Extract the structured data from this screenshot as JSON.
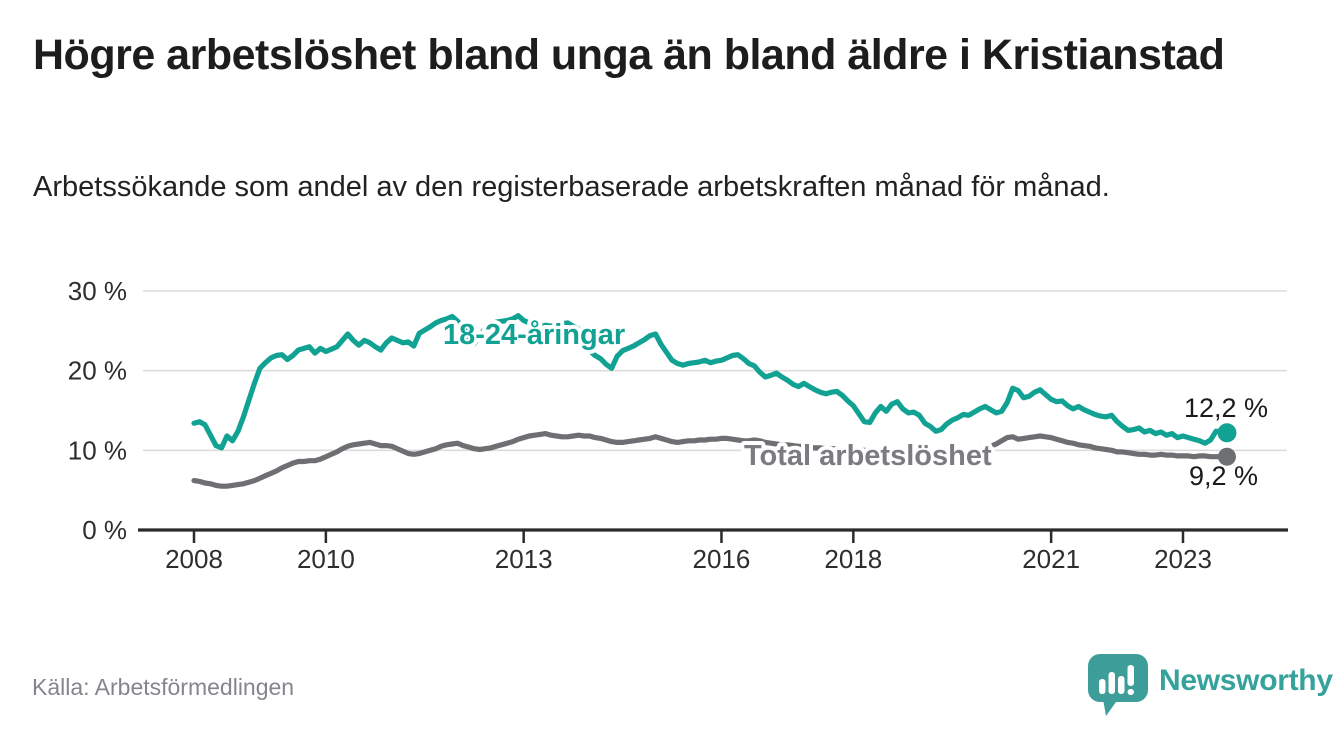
{
  "header": {
    "title": "Högre arbetslöshet bland unga än bland äldre i Kristianstad",
    "subtitle": "Arbetssökande som andel av den registerbaserade arbetskraften månad för månad."
  },
  "footer": {
    "source": "Källa: Arbetsförmedlingen",
    "brand": "Newsworthy",
    "brand_color": "#35a29c"
  },
  "chart_data": {
    "type": "line",
    "unit": "percent",
    "grid": "horizontal-only",
    "legend_position": "inline-labels-on-lines",
    "ylim": [
      0,
      30
    ],
    "xlim": [
      2008.0,
      2023.67
    ],
    "y_ticks": [
      0,
      10,
      20,
      30
    ],
    "y_tick_labels": [
      "0 %",
      "10 %",
      "20 %",
      "30 %"
    ],
    "x_ticks": [
      2008,
      2010,
      2013,
      2016,
      2018,
      2021,
      2023
    ],
    "x_tick_labels": [
      "2008",
      "2010",
      "2013",
      "2016",
      "2018",
      "2021",
      "2023"
    ],
    "series": [
      {
        "name": "18-24-åringar",
        "color": "#12a294",
        "label_color": "#12a294",
        "end_label": "12,2 %",
        "end_value": 12.2,
        "start_year": 2008,
        "interval_months": 1,
        "values": [
          13.4,
          13.6,
          13.2,
          11.9,
          10.6,
          10.3,
          11.8,
          11.2,
          12.4,
          14.2,
          16.3,
          18.4,
          20.3,
          21.0,
          21.6,
          21.9,
          22.0,
          21.4,
          21.9,
          22.6,
          22.8,
          23.0,
          22.2,
          22.8,
          22.4,
          22.7,
          23.0,
          23.8,
          24.6,
          23.8,
          23.2,
          23.8,
          23.5,
          23.0,
          22.6,
          23.5,
          24.1,
          23.8,
          23.5,
          23.6,
          23.1,
          24.7,
          25.1,
          25.5,
          26.0,
          26.3,
          26.5,
          26.8,
          26.2,
          25.4,
          24.2,
          23.4,
          24.4,
          25.3,
          25.9,
          26.1,
          26.2,
          26.3,
          26.5,
          26.9,
          26.3,
          26.0,
          25.7,
          25.5,
          25.7,
          25.6,
          25.8,
          25.9,
          26.0,
          25.6,
          25.2,
          23.8,
          22.5,
          21.9,
          21.5,
          20.8,
          20.3,
          21.8,
          22.5,
          22.8,
          23.1,
          23.5,
          23.9,
          24.4,
          24.6,
          23.3,
          22.3,
          21.3,
          20.9,
          20.7,
          20.9,
          21.0,
          21.1,
          21.3,
          21.0,
          21.2,
          21.3,
          21.6,
          21.9,
          22.0,
          21.5,
          20.9,
          20.6,
          19.8,
          19.2,
          19.4,
          19.7,
          19.2,
          18.8,
          18.3,
          18.0,
          18.4,
          18.0,
          17.6,
          17.3,
          17.1,
          17.3,
          17.4,
          16.9,
          16.2,
          15.6,
          14.6,
          13.6,
          13.5,
          14.7,
          15.5,
          14.9,
          15.8,
          16.1,
          15.2,
          14.7,
          14.8,
          14.4,
          13.4,
          13.0,
          12.4,
          12.6,
          13.3,
          13.8,
          14.1,
          14.5,
          14.4,
          14.8,
          15.2,
          15.5,
          15.1,
          14.7,
          14.9,
          16.0,
          17.8,
          17.5,
          16.6,
          16.8,
          17.3,
          17.6,
          17.0,
          16.4,
          16.1,
          16.2,
          15.6,
          15.2,
          15.5,
          15.1,
          14.8,
          14.5,
          14.3,
          14.2,
          14.4,
          13.6,
          13.0,
          12.5,
          12.6,
          12.8,
          12.3,
          12.5,
          12.1,
          12.3,
          11.9,
          12.1,
          11.6,
          11.8,
          11.6,
          11.4,
          11.2,
          10.9,
          11.3,
          12.4,
          12.3,
          12.2
        ]
      },
      {
        "name": "Total arbetslöshet",
        "color": "#6e6f73",
        "label_color": "#7b7c82",
        "end_label": "9,2 %",
        "end_value": 9.2,
        "start_year": 2008,
        "interval_months": 1,
        "values": [
          6.2,
          6.1,
          5.9,
          5.8,
          5.6,
          5.5,
          5.5,
          5.6,
          5.7,
          5.8,
          6.0,
          6.2,
          6.5,
          6.8,
          7.1,
          7.4,
          7.8,
          8.1,
          8.4,
          8.6,
          8.6,
          8.7,
          8.7,
          8.9,
          9.2,
          9.5,
          9.8,
          10.2,
          10.5,
          10.7,
          10.8,
          10.9,
          11.0,
          10.8,
          10.6,
          10.6,
          10.5,
          10.2,
          9.9,
          9.6,
          9.5,
          9.6,
          9.8,
          10.0,
          10.2,
          10.5,
          10.7,
          10.8,
          10.9,
          10.6,
          10.4,
          10.2,
          10.1,
          10.2,
          10.3,
          10.5,
          10.7,
          10.9,
          11.1,
          11.4,
          11.6,
          11.8,
          11.9,
          12.0,
          12.1,
          11.9,
          11.8,
          11.7,
          11.7,
          11.8,
          11.9,
          11.8,
          11.8,
          11.6,
          11.5,
          11.3,
          11.1,
          11.0,
          11.0,
          11.1,
          11.2,
          11.3,
          11.4,
          11.5,
          11.7,
          11.5,
          11.3,
          11.1,
          11.0,
          11.1,
          11.2,
          11.2,
          11.3,
          11.3,
          11.4,
          11.4,
          11.5,
          11.5,
          11.4,
          11.3,
          11.2,
          11.2,
          11.3,
          11.2,
          11.0,
          10.9,
          10.8,
          10.7,
          10.7,
          10.6,
          10.5,
          10.5,
          10.4,
          10.3,
          10.3,
          10.2,
          10.2,
          10.2,
          10.2,
          10.2,
          10.2,
          10.1,
          10.0,
          10.0,
          9.9,
          9.9,
          9.9,
          9.8,
          9.8,
          9.8,
          9.7,
          9.7,
          9.7,
          9.6,
          9.6,
          9.6,
          9.6,
          9.6,
          9.7,
          9.7,
          9.8,
          9.9,
          10.0,
          10.1,
          10.2,
          10.5,
          10.8,
          11.2,
          11.6,
          11.7,
          11.4,
          11.5,
          11.6,
          11.7,
          11.8,
          11.7,
          11.6,
          11.4,
          11.2,
          11.0,
          10.9,
          10.7,
          10.6,
          10.5,
          10.3,
          10.2,
          10.1,
          10.0,
          9.8,
          9.8,
          9.7,
          9.6,
          9.5,
          9.5,
          9.4,
          9.4,
          9.5,
          9.4,
          9.4,
          9.3,
          9.3,
          9.3,
          9.2,
          9.3,
          9.3,
          9.2,
          9.2,
          9.2,
          9.2
        ]
      }
    ]
  }
}
